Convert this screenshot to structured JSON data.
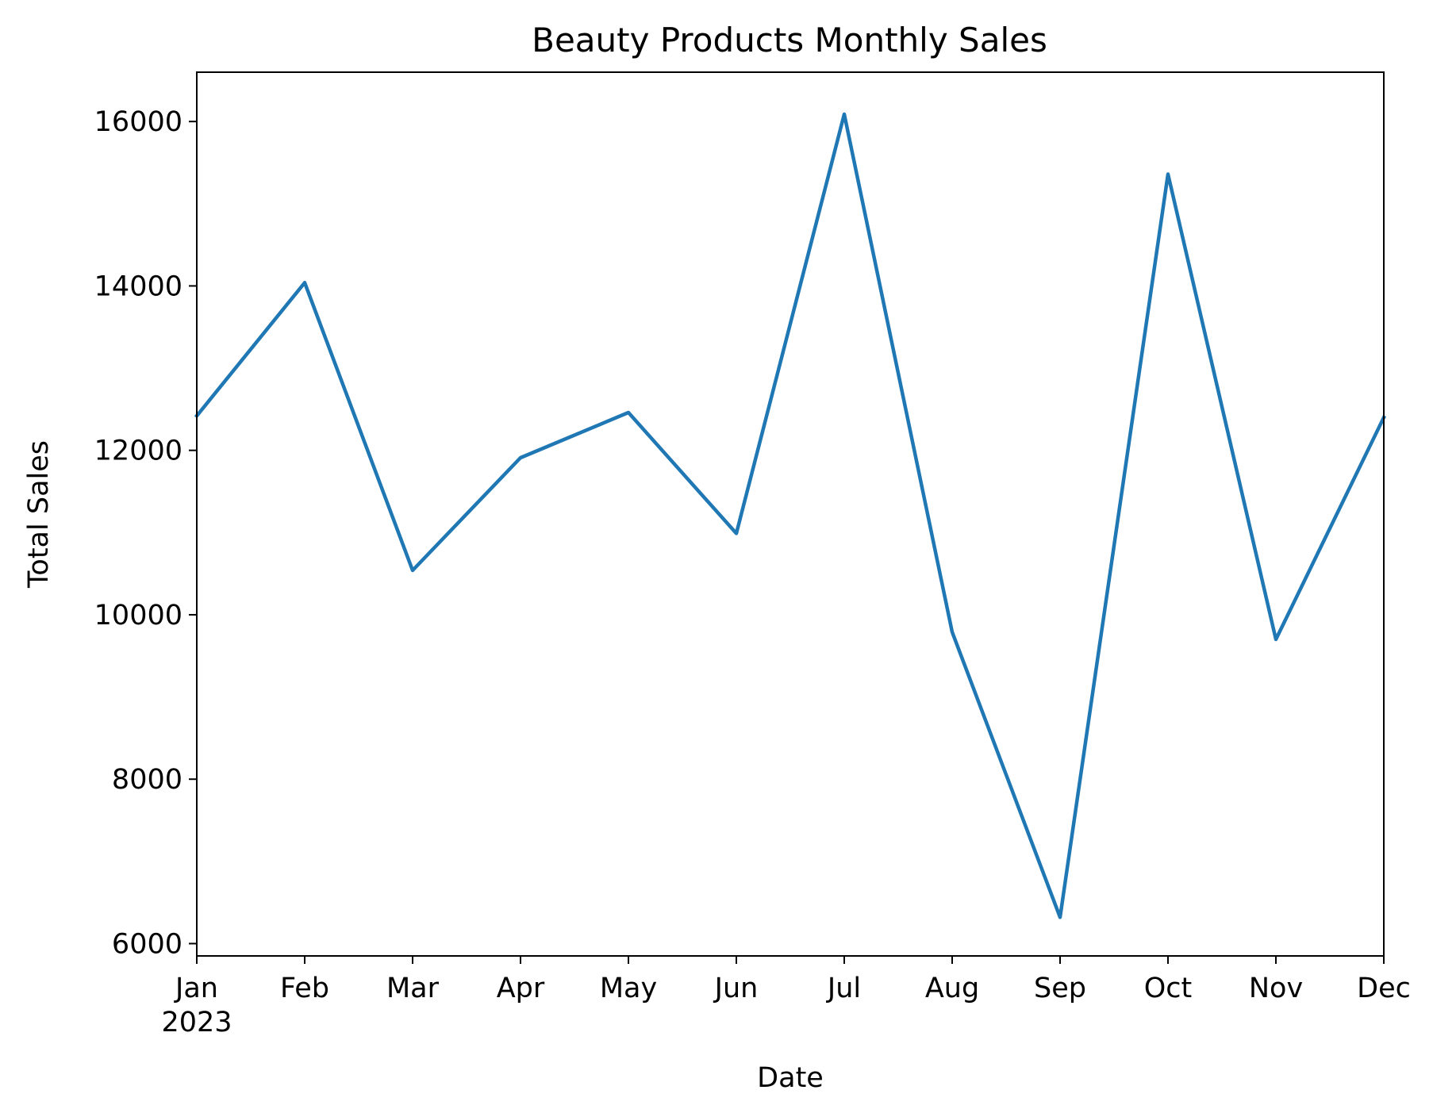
{
  "chart_data": {
    "type": "line",
    "title": "Beauty Products Monthly Sales",
    "xlabel": "Date",
    "ylabel": "Total Sales",
    "x": [
      "2023-01",
      "2023-02",
      "2023-03",
      "2023-04",
      "2023-05",
      "2023-06",
      "2023-07",
      "2023-08",
      "2023-09",
      "2023-10",
      "2023-11",
      "2023-12"
    ],
    "x_tick_labels": [
      "Jan",
      "Feb",
      "Mar",
      "Apr",
      "May",
      "Jun",
      "Jul",
      "Aug",
      "Sep",
      "Oct",
      "Nov",
      "Dec"
    ],
    "x_tick_year": "2023",
    "series": [
      {
        "color": "#1f77b4",
        "values": [
          12420,
          14040,
          10540,
          11910,
          12460,
          10990,
          16090,
          9790,
          6320,
          15360,
          9700,
          12400
        ]
      }
    ],
    "yticks": [
      6000,
      8000,
      10000,
      12000,
      14000,
      16000
    ],
    "ylim": [
      5850,
      16600
    ],
    "grid": false,
    "legend": "none"
  }
}
